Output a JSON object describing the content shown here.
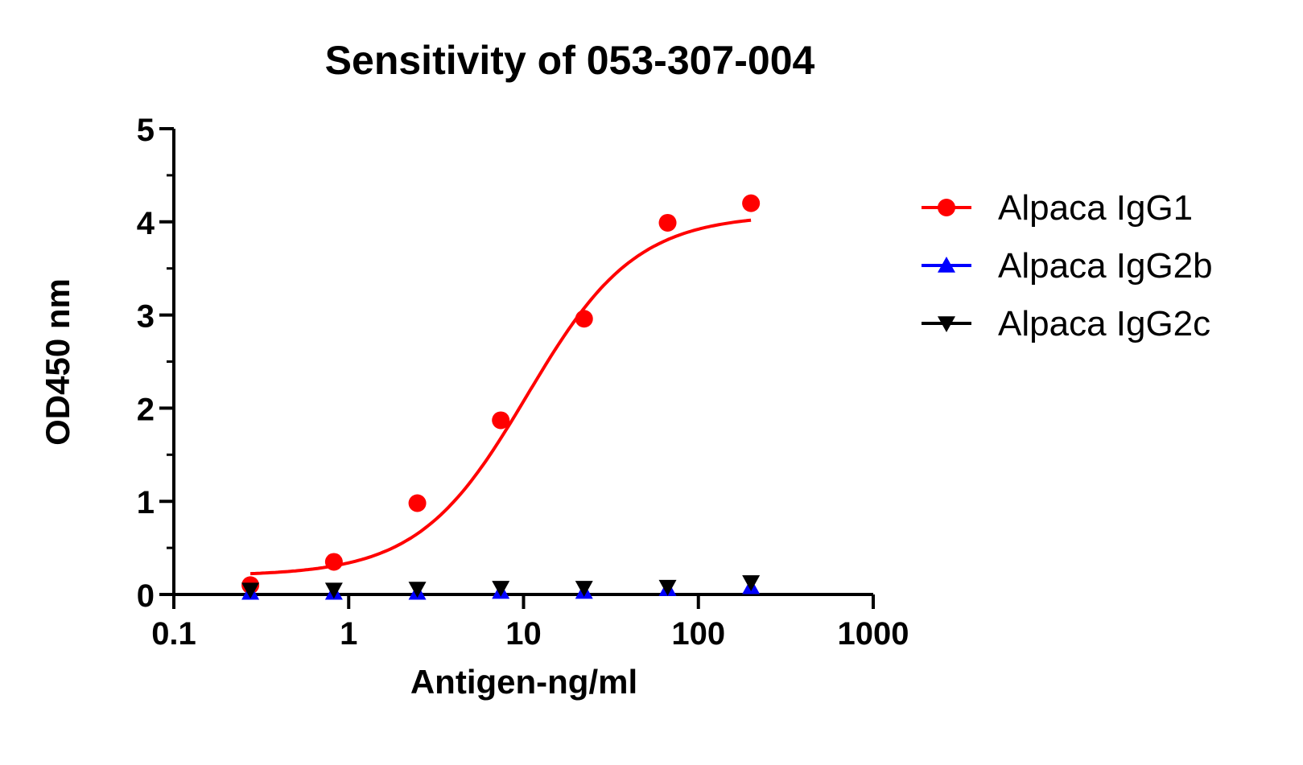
{
  "chart_data": {
    "type": "scatter",
    "title": "Sensitivity of 053-307-004",
    "xlabel": "Antigen-ng/ml",
    "ylabel": "OD450 nm",
    "xscale": "log",
    "xlim": [
      0.1,
      1000
    ],
    "ylim": [
      0,
      5
    ],
    "xticks": [
      "0.1",
      "1",
      "10",
      "100",
      "1000"
    ],
    "yticks": [
      "0",
      "1",
      "2",
      "3",
      "4",
      "5"
    ],
    "grid": false,
    "legend_position": "right",
    "x": [
      0.274,
      0.823,
      2.47,
      7.41,
      22.2,
      66.7,
      200
    ],
    "series": [
      {
        "name": "Alpaca IgG1",
        "color": "#ff0000",
        "marker": "circle",
        "values": [
          0.1,
          0.35,
          0.98,
          1.87,
          2.96,
          3.99,
          4.2
        ],
        "fit": {
          "model": "4PL",
          "bottom": 0.2,
          "top": 4.08,
          "ec50": 10.5,
          "hill": 1.4
        }
      },
      {
        "name": "Alpaca IgG2b",
        "color": "#0000ff",
        "marker": "triangle-up",
        "values": [
          0.02,
          0.02,
          0.02,
          0.03,
          0.03,
          0.06,
          0.08
        ]
      },
      {
        "name": "Alpaca IgG2c",
        "color": "#000000",
        "marker": "triangle-down",
        "values": [
          0.05,
          0.05,
          0.06,
          0.07,
          0.07,
          0.08,
          0.13
        ]
      }
    ]
  }
}
